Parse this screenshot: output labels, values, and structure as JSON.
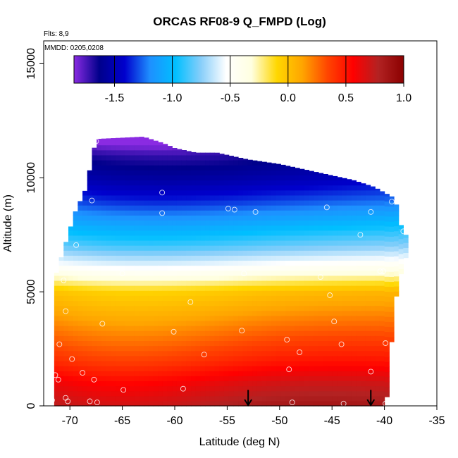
{
  "chart_data": {
    "type": "heatmap",
    "title": "ORCAS RF08-9 Q_FMPD (Log)",
    "flights_note": "Flts: 8,9",
    "date_note": "MMDD: 0205,0208",
    "xlabel": "Latitude (deg N)",
    "ylabel": "Altitude (m)",
    "xlim": [
      -72.5,
      -35
    ],
    "ylim": [
      0,
      16000
    ],
    "x_ticks": [
      -70,
      -65,
      -60,
      -55,
      -50,
      -45,
      -40,
      -35
    ],
    "x_tick_labels": [
      "-70",
      "-65",
      "-60",
      "-55",
      "-50",
      "-45",
      "-40",
      "-35"
    ],
    "y_ticks": [
      0,
      5000,
      10000,
      15000
    ],
    "y_tick_labels": [
      "0",
      "5000",
      "10000",
      "15000"
    ],
    "colorbar": {
      "range": [
        -1.85,
        1.0
      ],
      "ticks": [
        -1.5,
        -1.0,
        -0.5,
        0.0,
        0.5,
        1.0
      ],
      "tick_labels": [
        "-1.5",
        "-1.0",
        "-0.5",
        "0.0",
        "0.5",
        "1.0"
      ],
      "colors": [
        "#8a2be2",
        "#00008b",
        "#0000cd",
        "#1e90ff",
        "#00bfff",
        "#87cefa",
        "#ffffff",
        "#ffffe0",
        "#ffd700",
        "#ffa500",
        "#ff4500",
        "#ff0000",
        "#b22222",
        "#8b0000"
      ]
    },
    "field": {
      "lat_range": [
        -71.5,
        -38
      ],
      "top_profile": [
        [
          -71.5,
          5500
        ],
        [
          -70.5,
          7000
        ],
        [
          -69.5,
          8500
        ],
        [
          -68.5,
          9500
        ],
        [
          -67.5,
          11700
        ],
        [
          -63,
          11800
        ],
        [
          -61,
          11500
        ],
        [
          -60,
          11300
        ],
        [
          -58,
          11100
        ],
        [
          -56,
          11100
        ],
        [
          -53,
          10800
        ],
        [
          -50,
          10600
        ],
        [
          -46,
          10200
        ],
        [
          -43,
          9900
        ],
        [
          -41,
          9600
        ],
        [
          -39,
          9100
        ],
        [
          -38.5,
          8000
        ],
        [
          -38,
          7500
        ]
      ],
      "bottom_profile": [
        [
          -71.5,
          0
        ],
        [
          -40,
          0
        ],
        [
          -39.8,
          300
        ],
        [
          -39.5,
          1500
        ],
        [
          -39.3,
          3000
        ],
        [
          -39,
          4500
        ],
        [
          -38.6,
          5500
        ],
        [
          -38,
          6500
        ]
      ],
      "levels_by_altitude": [
        [
          0,
          0.85
        ],
        [
          1000,
          0.7
        ],
        [
          2000,
          0.5
        ],
        [
          3000,
          0.35
        ],
        [
          4000,
          0.2
        ],
        [
          5000,
          0.05
        ],
        [
          6000,
          -0.4
        ],
        [
          7000,
          -0.75
        ],
        [
          8000,
          -1.0
        ],
        [
          9000,
          -1.25
        ],
        [
          10000,
          -1.45
        ],
        [
          11000,
          -1.6
        ],
        [
          11800,
          -1.85
        ]
      ]
    },
    "points": [
      [
        -67.5,
        11600
      ],
      [
        -61.2,
        9350
      ],
      [
        -67.9,
        9000
      ],
      [
        -61.2,
        8450
      ],
      [
        -54.9,
        8650
      ],
      [
        -54.3,
        8600
      ],
      [
        -52.3,
        8500
      ],
      [
        -45.5,
        8700
      ],
      [
        -41.3,
        8500
      ],
      [
        -39.3,
        8950
      ],
      [
        -42.3,
        7500
      ],
      [
        -69.4,
        7050
      ],
      [
        -38.2,
        7650
      ],
      [
        -70.6,
        5500
      ],
      [
        -65,
        5800
      ],
      [
        -53.4,
        5800
      ],
      [
        -46.1,
        5650
      ],
      [
        -40.4,
        5900
      ],
      [
        -40.1,
        5900
      ],
      [
        -58.5,
        4550
      ],
      [
        -45.2,
        4850
      ],
      [
        -70.4,
        4150
      ],
      [
        -66.9,
        3600
      ],
      [
        -60.1,
        3250
      ],
      [
        -53.6,
        3300
      ],
      [
        -44.8,
        3700
      ],
      [
        -71,
        2700
      ],
      [
        -49.3,
        2900
      ],
      [
        -44.1,
        2700
      ],
      [
        -39.9,
        2750
      ],
      [
        -48.1,
        2350
      ],
      [
        -57.2,
        2250
      ],
      [
        -69.8,
        2050
      ],
      [
        -68.8,
        1450
      ],
      [
        -49.1,
        1600
      ],
      [
        -41.3,
        1500
      ],
      [
        -71.4,
        1350
      ],
      [
        -71.1,
        1150
      ],
      [
        -67.7,
        1150
      ],
      [
        -64.9,
        700
      ],
      [
        -59.2,
        750
      ],
      [
        -70.4,
        350
      ],
      [
        -70.2,
        200
      ],
      [
        -68.1,
        200
      ],
      [
        -67.4,
        150
      ],
      [
        -71.7,
        250
      ],
      [
        -48.8,
        150
      ],
      [
        -43.9,
        100
      ],
      [
        -39.9,
        100
      ]
    ],
    "arrows": [
      -53,
      -41.3
    ]
  }
}
